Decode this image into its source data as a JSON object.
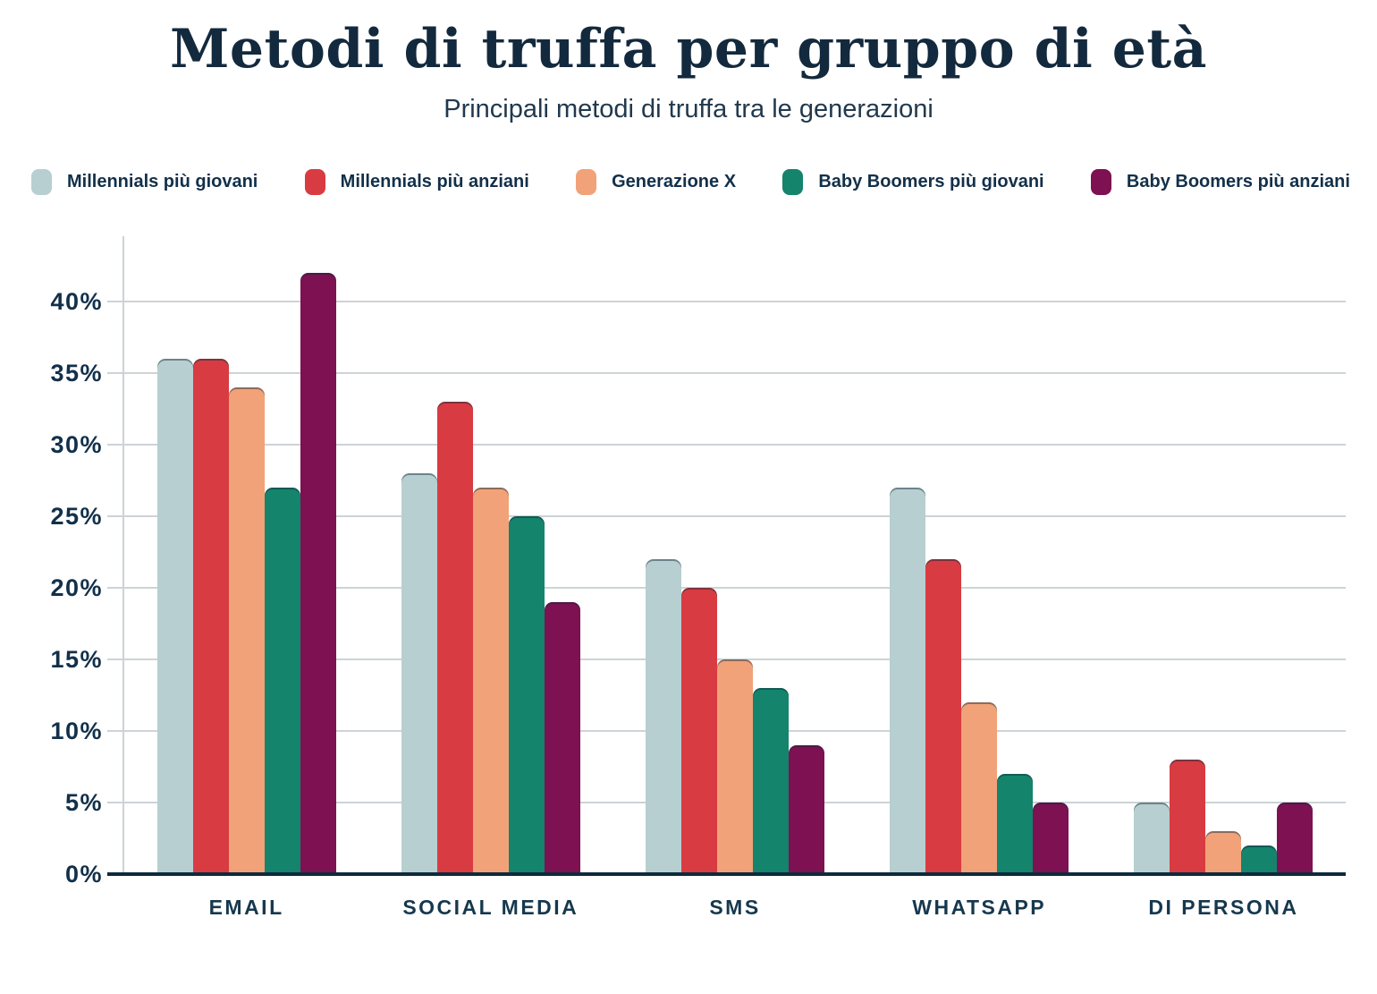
{
  "header": {
    "title": "Metodi di truffa per gruppo di età",
    "subtitle": "Principali metodi di truffa tra le generazioni"
  },
  "chart_data": {
    "type": "bar",
    "categories": [
      "EMAIL",
      "SOCIAL MEDIA",
      "SMS",
      "WHATSAPP",
      "DI PERSONA"
    ],
    "series": [
      {
        "name": "Millennials più giovani",
        "color": "#B7CFD0",
        "values": [
          36,
          28,
          22,
          27,
          5
        ]
      },
      {
        "name": "Millennials più anziani",
        "color": "#D93B42",
        "values": [
          36,
          33,
          20,
          22,
          8
        ]
      },
      {
        "name": "Generazione X",
        "color": "#F2A278",
        "values": [
          34,
          27,
          15,
          12,
          3
        ]
      },
      {
        "name": "Baby Boomers più giovani",
        "color": "#14846C",
        "values": [
          27,
          25,
          13,
          7,
          2
        ]
      },
      {
        "name": "Baby Boomers più anziani",
        "color": "#7D1152",
        "values": [
          42,
          19,
          9,
          5,
          5
        ]
      }
    ],
    "title": "Metodi di truffa per gruppo di età",
    "subtitle": "Principali metodi di truffa tra le generazioni",
    "xlabel": "",
    "ylabel": "",
    "ylim": [
      0,
      45
    ],
    "ytick_step": 5,
    "ytick_labels": [
      "0%",
      "5%",
      "10%",
      "15%",
      "20%",
      "25%",
      "30%",
      "35%",
      "40%"
    ],
    "grid": "horizontal",
    "legend_position": "top"
  },
  "style": {
    "background": "#ffffff",
    "text_navy": "#12304A",
    "gridline_color": "#CDD3D6",
    "baseline_color": "#0E2A3D"
  }
}
